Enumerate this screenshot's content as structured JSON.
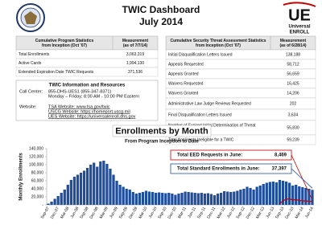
{
  "header": {
    "title": "TWIC Dashboard",
    "date": "July 2014",
    "logo_mark": "UE",
    "logo_lines": [
      "Universal",
      "ENROLL"
    ]
  },
  "program_table": {
    "headers": [
      [
        "Cumulative Program Statistics",
        "from Inception (Oct '07)"
      ],
      [
        "Measurement",
        "(as of 7/7/14)"
      ]
    ],
    "rows": [
      {
        "label": [
          "Total Enrollments"
        ],
        "value": "3,063,319"
      },
      {
        "label": [
          "Active Cards"
        ],
        "value": "1,994,130"
      },
      {
        "label": [
          "Extended Expiration Date TWIC Requests"
        ],
        "value": "371,536"
      }
    ]
  },
  "sta_table": {
    "headers": [
      [
        "Cumulative Security Threat Assessment Statistics",
        "from Inception (Oct '07)"
      ],
      [
        "Measurement",
        "(as of 6/28/14)"
      ]
    ],
    "rows": [
      {
        "label": [
          "Initial Disqualification Letters Issued"
        ],
        "value": "138,188"
      },
      {
        "label": [
          "Appeals Requested"
        ],
        "value": "58,712"
      },
      {
        "label": [
          "Appeals Granted"
        ],
        "value": "56,659"
      },
      {
        "label": [
          "Waivers Requested"
        ],
        "value": "16,425"
      },
      {
        "label": [
          "Waivers Granted"
        ],
        "value": "14,206"
      },
      {
        "label": [
          "Administrative Law Judge Reviews Requested"
        ],
        "value": "202"
      },
      {
        "label": [
          "Final Disqualification Letters Issued"
        ],
        "value": "3,634"
      },
      {
        "label": [
          "Number of Expired Initial Determination of Threat",
          "Assessment Letters"
        ],
        "value": "55,830"
      },
      {
        "label": [
          "Total Applicants Ineligible for a TWIC"
        ],
        "value": "59,239"
      }
    ]
  },
  "info": {
    "title": "TWIC Information and Resources",
    "call_center_label": "Call Center:",
    "call_center_lines": [
      "855-DHS-UES1 (855-347-8371)",
      "Monday – Friday; 8:00 AM - 10:00 PM Eastern"
    ],
    "website_label": "Website:",
    "website_lines": [
      "TSA Website: www.tsa.gov/twic",
      "USCG Website: https://homeport.uscg.mil",
      "UES Website: https://universalenroll.dhs.gov"
    ]
  },
  "chart": {
    "type": "bar",
    "title": "Enrollments by Month",
    "subtitle": "From Program Inception to Date",
    "y_label": "Monthly Enrollments",
    "categories": [
      "Sep-07",
      null,
      null,
      "Dec-07",
      null,
      null,
      "Mar-08",
      null,
      null,
      "Jun-08",
      null,
      null,
      "Sep-08",
      null,
      null,
      "Dec-08",
      null,
      null,
      "Mar-09",
      null,
      null,
      "Jun-09",
      null,
      null,
      "Sep-09",
      null,
      null,
      "Dec-09",
      null,
      null,
      "Mar-10",
      null,
      null,
      "Jun-10",
      null,
      null,
      "Sep-10",
      null,
      null,
      "Dec-10",
      null,
      null,
      "Mar-11",
      null,
      null,
      "Jun-11",
      null,
      null,
      "Sep-11",
      null,
      null,
      "Dec-11",
      null,
      null,
      "Mar-12",
      null,
      null,
      "Jun-12",
      null,
      null,
      "Sep-12",
      null,
      null,
      "Dec-12",
      null,
      null,
      "Mar-13",
      null,
      null,
      "Jun-13",
      null,
      null,
      "Sep-13",
      null,
      null,
      "Dec-13",
      null,
      null,
      "Mar-14",
      null,
      null,
      "Jun-14"
    ],
    "series": [
      {
        "color": "#1f4e9c",
        "values": [
          3000,
          8000,
          15000,
          22000,
          30000,
          38000,
          50000,
          62000,
          70000,
          75000,
          80000,
          85000,
          92000,
          100000,
          105000,
          95000,
          108000,
          110000,
          102000,
          90000,
          75000,
          60000,
          50000,
          45000,
          40000,
          38000,
          32000,
          28000,
          30000,
          32000,
          35000,
          33000,
          32000,
          30000,
          31000,
          30000,
          29000,
          30000,
          28000,
          25000,
          28000,
          30000,
          33000,
          32000,
          31000,
          30000,
          29000,
          30000,
          28000,
          29000,
          27000,
          24000,
          28000,
          30000,
          34000,
          33000,
          32000,
          33000,
          35000,
          38000,
          40000,
          45000,
          42000,
          38000,
          45000,
          48000,
          52000,
          55000,
          57000,
          58000,
          56000,
          62000,
          60000,
          58000,
          55000,
          48000,
          50000,
          46000,
          44000,
          42000,
          40000,
          37397
        ]
      },
      {
        "color": "#c00000",
        "values": [
          null,
          null,
          null,
          null,
          null,
          null,
          null,
          null,
          null,
          null,
          null,
          null,
          null,
          null,
          null,
          null,
          null,
          null,
          null,
          null,
          null,
          null,
          null,
          null,
          null,
          null,
          null,
          null,
          null,
          null,
          null,
          null,
          null,
          null,
          null,
          null,
          null,
          null,
          null,
          null,
          null,
          null,
          null,
          null,
          null,
          null,
          null,
          null,
          null,
          null,
          null,
          null,
          null,
          null,
          null,
          null,
          null,
          null,
          null,
          null,
          null,
          null,
          null,
          null,
          null,
          null,
          null,
          null,
          null,
          null,
          null,
          3000,
          10000,
          14000,
          15000,
          12000,
          13000,
          11000,
          10000,
          9500,
          9000,
          8469
        ]
      }
    ],
    "ylim": [
      0,
      140000
    ],
    "yticks": [
      {
        "value": 0,
        "label": "-"
      },
      {
        "value": 20000,
        "label": "20,000"
      },
      {
        "value": 40000,
        "label": "40,000"
      },
      {
        "value": 60000,
        "label": "60,000"
      },
      {
        "value": 80000,
        "label": "80,000"
      },
      {
        "value": 100000,
        "label": "100,000"
      },
      {
        "value": 120000,
        "label": "120,000"
      },
      {
        "value": 140000,
        "label": "140,000"
      }
    ],
    "callouts": [
      {
        "label": "Total EED Requests in June:",
        "value": "8,469",
        "color": "#c00000"
      },
      {
        "label": "Total Standard Enrollments in June:",
        "value": "37,397",
        "color": "#1f4e9c"
      }
    ]
  }
}
